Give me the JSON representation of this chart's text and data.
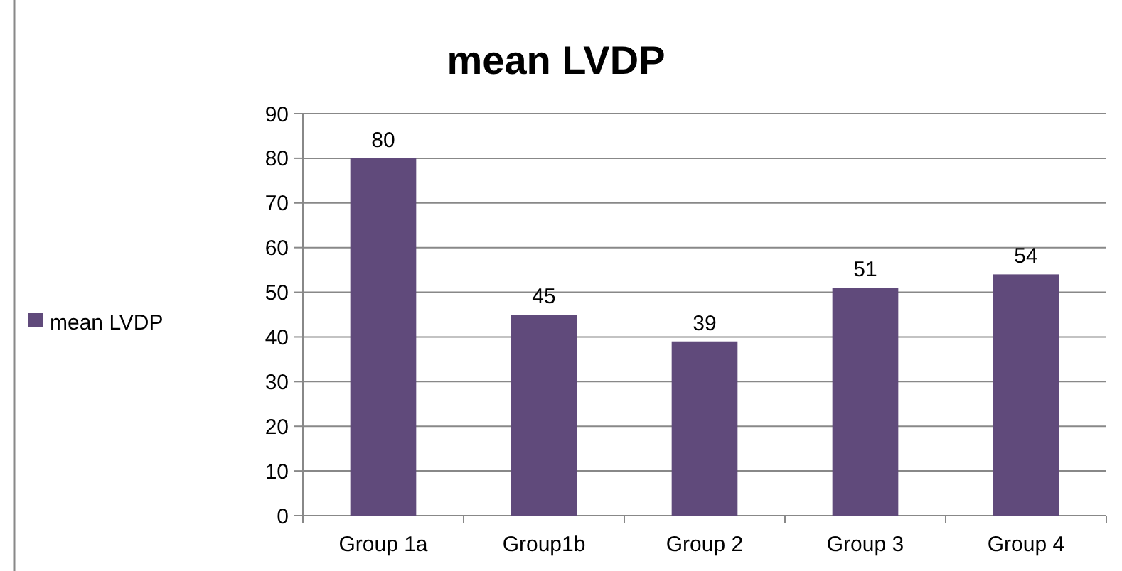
{
  "chart_data": {
    "type": "bar",
    "title": "mean LVDP",
    "categories": [
      "Group 1a",
      "Group1b",
      "Group 2",
      "Group 3",
      "Group 4"
    ],
    "series": [
      {
        "name": "mean LVDP",
        "color": "#604a7b",
        "values": [
          80,
          45,
          39,
          51,
          54
        ]
      }
    ],
    "ylim": [
      0,
      90
    ],
    "yticks": [
      0,
      10,
      20,
      30,
      40,
      50,
      60,
      70,
      80,
      90
    ],
    "grid": "y",
    "legend": "left",
    "data_labels": true
  }
}
